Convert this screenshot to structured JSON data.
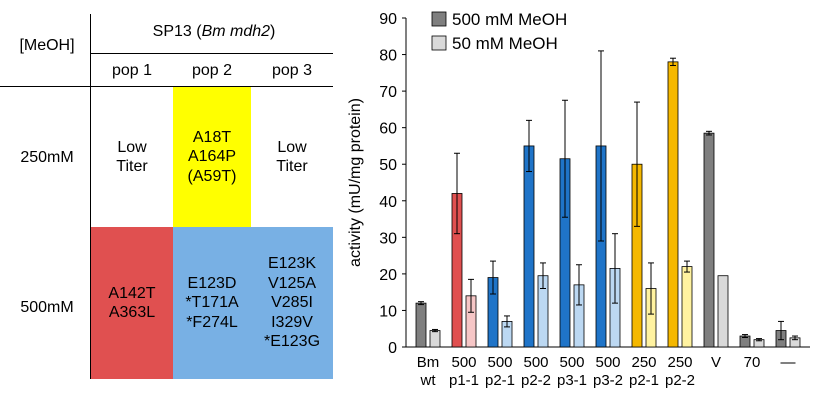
{
  "table": {
    "row_header": "[MeOH]",
    "title": "SP13 (",
    "title_italic": "Bm mdh2",
    "title_end": ")",
    "columns": [
      "pop 1",
      "pop 2",
      "pop 3"
    ],
    "rows": [
      {
        "label": "250mM",
        "cells": [
          {
            "lines": [
              "Low",
              "Titer"
            ],
            "color": "#ffffff"
          },
          {
            "lines": [
              "A18T",
              "A164P",
              "(A59T)"
            ],
            "color": "#ffff00"
          },
          {
            "lines": [
              "Low",
              "Titer"
            ],
            "color": "#ffffff"
          }
        ]
      },
      {
        "label": "500mM",
        "cells": [
          {
            "lines": [
              "A142T",
              "A363L"
            ],
            "color": "#e05050"
          },
          {
            "lines": [
              "E123D",
              "*T171A",
              "*F274L"
            ],
            "color": "#78b0e4"
          },
          {
            "lines": [
              "E123K",
              "V125A",
              "V285I",
              "I329V",
              "*E123G"
            ],
            "color": "#78b0e4"
          }
        ]
      }
    ]
  },
  "chart_data": {
    "type": "bar",
    "ylabel": "activity (mU/mg protein)",
    "ylim": [
      0,
      90
    ],
    "yticks": [
      0,
      10,
      20,
      30,
      40,
      50,
      60,
      70,
      80,
      90
    ],
    "legend": {
      "placement": "top-left",
      "entries": [
        {
          "label": "500 mM MeOH",
          "color": "#7f7f7f"
        },
        {
          "label": "50 mM MeOH",
          "color": "#d9d9d9"
        }
      ]
    },
    "categories": [
      [
        "Bm",
        "wt"
      ],
      [
        "500",
        "p1-1"
      ],
      [
        "500",
        "p2-1"
      ],
      [
        "500",
        "p2-2"
      ],
      [
        "500",
        "p3-1"
      ],
      [
        "500",
        "p3-2"
      ],
      [
        "250",
        "p2-1"
      ],
      [
        "250",
        "p2-2"
      ],
      [
        "V",
        ""
      ],
      [
        "70",
        ""
      ],
      [
        "—",
        ""
      ]
    ],
    "category_colors": [
      [
        "#7f7f7f",
        "#d9d9d9"
      ],
      [
        "#e05050",
        "#f6c6c6"
      ],
      [
        "#1f74c8",
        "#bcd8f2"
      ],
      [
        "#1f74c8",
        "#bcd8f2"
      ],
      [
        "#1f74c8",
        "#bcd8f2"
      ],
      [
        "#1f74c8",
        "#bcd8f2"
      ],
      [
        "#f5b800",
        "#fff2a0"
      ],
      [
        "#f5b800",
        "#fff2a0"
      ],
      [
        "#7f7f7f",
        "#d9d9d9"
      ],
      [
        "#7f7f7f",
        "#d9d9d9"
      ],
      [
        "#7f7f7f",
        "#d9d9d9"
      ]
    ],
    "series": [
      {
        "name": "500 mM MeOH",
        "values": [
          12,
          42,
          19,
          55,
          51.5,
          55,
          50,
          78,
          58.5,
          3,
          4.5
        ],
        "errors": [
          0.4,
          11,
          4.5,
          7,
          16,
          26,
          17,
          1,
          0.5,
          0.4,
          2.5
        ]
      },
      {
        "name": "50 mM MeOH",
        "values": [
          4.5,
          14,
          7,
          19.5,
          17,
          21.5,
          16,
          22,
          19.5,
          2,
          2.5
        ],
        "errors": [
          0.3,
          4.5,
          1.5,
          3.5,
          5.5,
          9.5,
          7,
          1.5,
          0,
          0.3,
          0.5
        ]
      }
    ]
  }
}
